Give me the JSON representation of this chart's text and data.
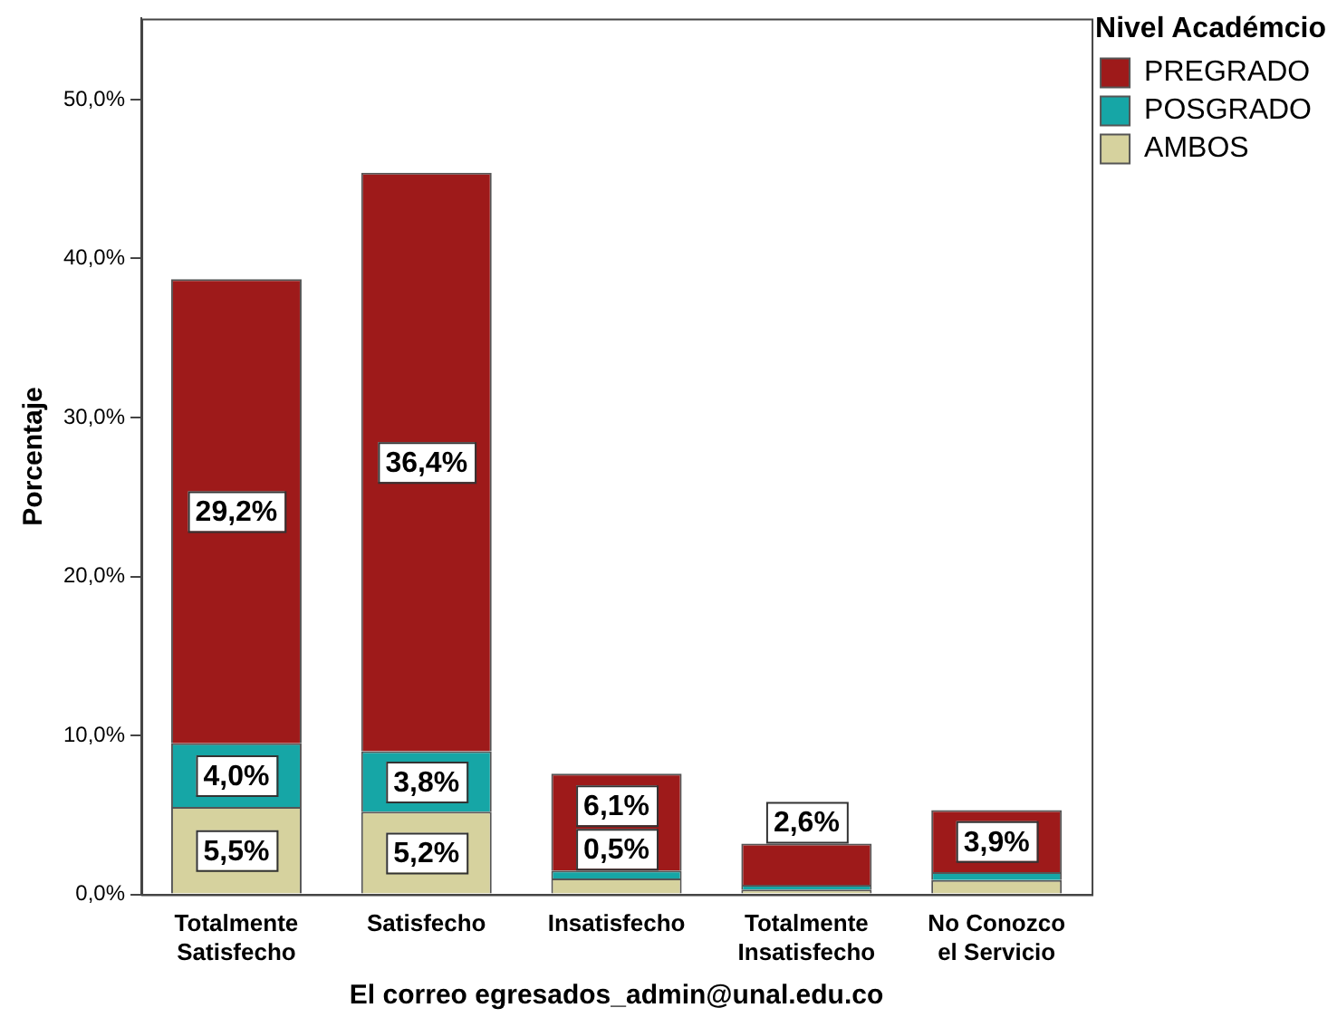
{
  "chart_data": {
    "type": "bar",
    "stacked": true,
    "xlabel": "El correo egresados_admin@unal.edu.co",
    "ylabel": "Porcentaje",
    "legend_title": "Nivel Académcio",
    "legend": "right",
    "grid": false,
    "categories": [
      "Totalmente Satisfecho",
      "Satisfecho",
      "Insatisfecho",
      "Totalmente Insatisfecho",
      "No Conozco el Servicio"
    ],
    "ylim": [
      0,
      55.1
    ],
    "yticks": [
      {
        "value": 0,
        "label": "0,0%"
      },
      {
        "value": 10,
        "label": "10,0%"
      },
      {
        "value": 20,
        "label": "20,0%"
      },
      {
        "value": 30,
        "label": "30,0%"
      },
      {
        "value": 40,
        "label": "40,0%"
      },
      {
        "value": 50,
        "label": "50,0%"
      }
    ],
    "series": [
      {
        "name": "AMBOS",
        "color": "#d6d29e",
        "values": [
          5.5,
          5.2,
          1.0,
          0.3,
          0.9
        ],
        "value_labels": [
          "5,5%",
          "5,2%",
          null,
          null,
          null
        ]
      },
      {
        "name": "POSGRADO",
        "color": "#16a6a6",
        "values": [
          4.0,
          3.8,
          0.5,
          0.3,
          0.5
        ],
        "value_labels": [
          "4,0%",
          "3,8%",
          "0,5%",
          null,
          null
        ]
      },
      {
        "name": "PREGRADO",
        "color": "#9e1a1a",
        "values": [
          29.2,
          36.4,
          6.1,
          2.6,
          3.9
        ],
        "value_labels": [
          "29,2%",
          "36,4%",
          "6,1%",
          "2,6%",
          "3,9%"
        ]
      }
    ]
  }
}
